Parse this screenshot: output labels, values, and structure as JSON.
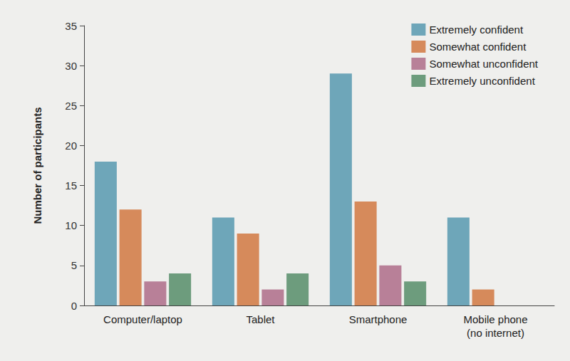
{
  "chart_data": {
    "type": "bar",
    "y_label": "Number of participants",
    "categories": [
      "Computer/laptop",
      "Tablet",
      "Smartphone",
      "Mobile phone\n(no internet)"
    ],
    "series": [
      {
        "name": "Extremely confident",
        "color": "#6ea6b9",
        "values": [
          18,
          11,
          29,
          11
        ]
      },
      {
        "name": "Somewhat confident",
        "color": "#d68a5b",
        "values": [
          12,
          9,
          13,
          2
        ]
      },
      {
        "name": "Somewhat unconfident",
        "color": "#b88098",
        "values": [
          3,
          2,
          5,
          0
        ]
      },
      {
        "name": "Extremely unconfident",
        "color": "#6d9c7d",
        "values": [
          4,
          4,
          3,
          0
        ]
      }
    ],
    "ylim": [
      0,
      35
    ],
    "yticks": [
      0,
      5,
      10,
      15,
      20,
      25,
      30,
      35
    ],
    "grid": false,
    "legend": "top-right"
  }
}
